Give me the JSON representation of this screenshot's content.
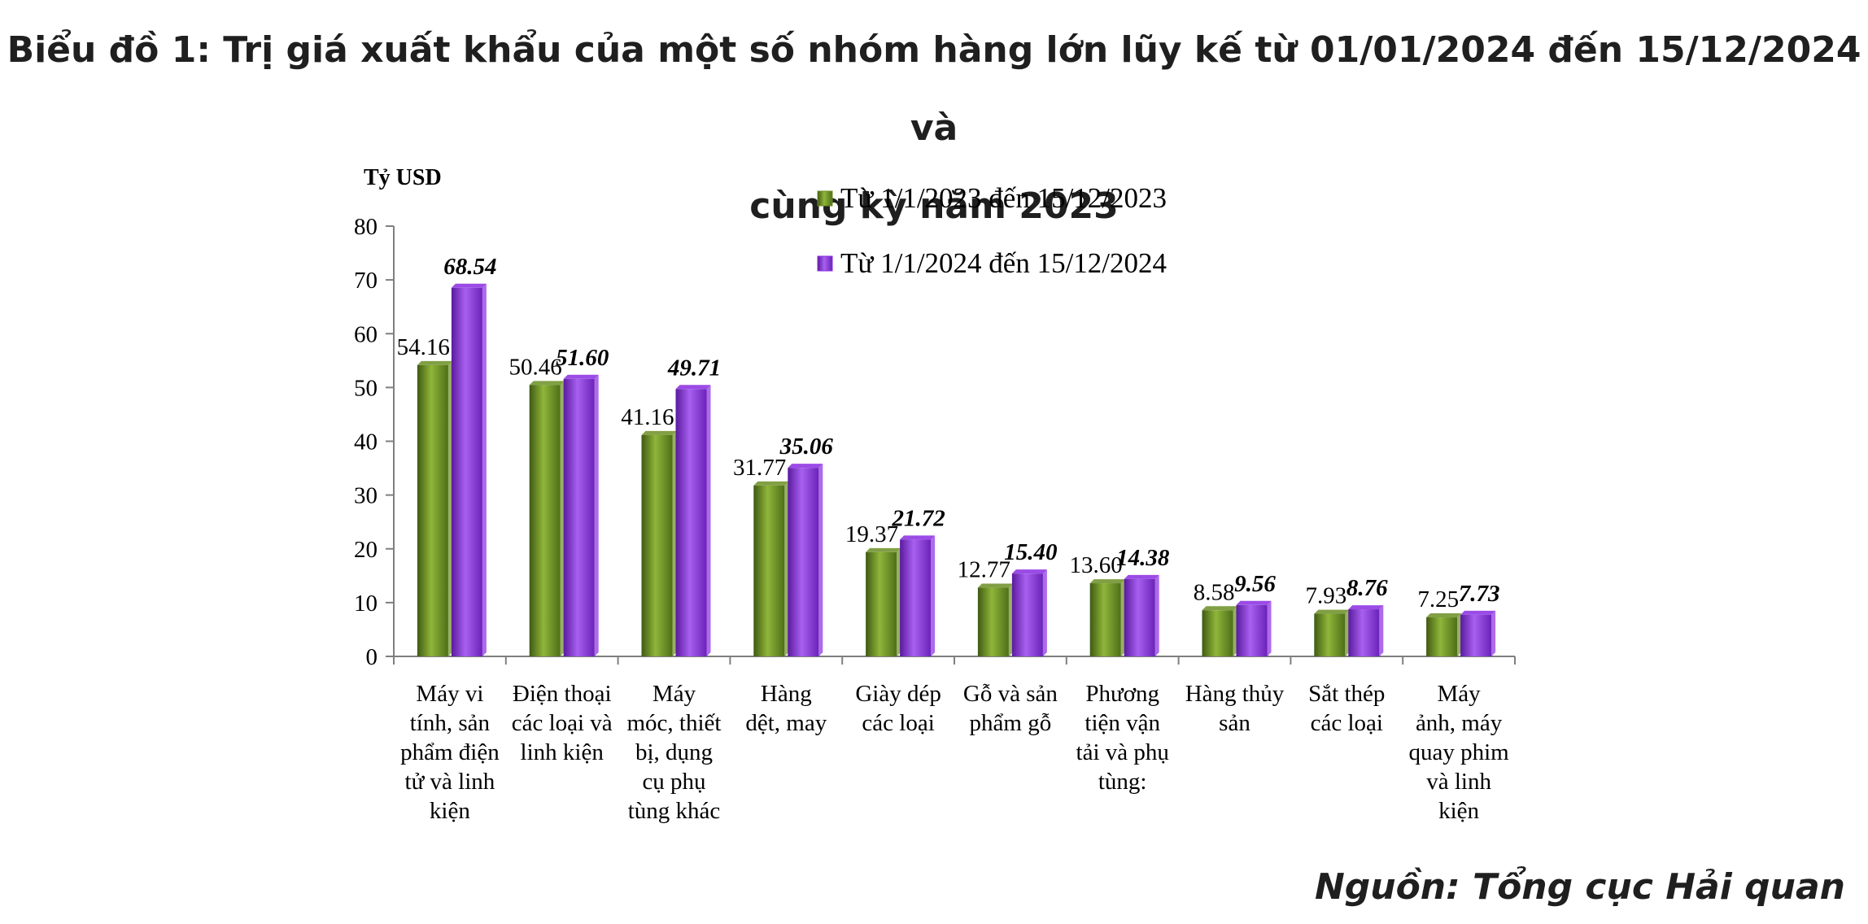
{
  "page": {
    "title_line1": "Biểu đồ 1: Trị giá xuất khẩu của một số nhóm hàng lớn lũy kế từ 01/01/2024 đến 15/12/2024 và",
    "title_line2": "cùng kỳ năm 2023",
    "source": "Nguồn: Tổng cục Hải quan"
  },
  "chart_data": {
    "type": "bar",
    "title": "",
    "ylabel": "Tỷ USD",
    "xlabel": "",
    "ylim": [
      0,
      80
    ],
    "yticks": [
      0,
      10,
      20,
      30,
      40,
      50,
      60,
      70,
      80
    ],
    "grid": false,
    "legend_position": "top-center",
    "categories": [
      [
        "Máy vi",
        "tính, sản",
        "phẩm điện",
        "tử và linh",
        "kiện"
      ],
      [
        "Điện thoại",
        "các loại và",
        "linh kiện"
      ],
      [
        "Máy",
        "móc, thiết",
        "bị, dụng",
        "cụ phụ",
        "tùng khác"
      ],
      [
        "Hàng",
        "dệt, may"
      ],
      [
        "Giày dép",
        "các loại"
      ],
      [
        "Gỗ và sản",
        "phẩm gỗ"
      ],
      [
        "Phương",
        "tiện vận",
        "tải và phụ",
        "tùng:"
      ],
      [
        "Hàng thủy",
        "sản"
      ],
      [
        "Sắt thép",
        "các loại"
      ],
      [
        "Máy",
        "ảnh, máy",
        "quay phim",
        "và linh",
        "kiện"
      ]
    ],
    "series": [
      {
        "name": "Từ 1/1/2023 đến 15/12/2023",
        "color": "#6b8e23",
        "label_style": "normal",
        "values": [
          54.16,
          50.46,
          41.16,
          31.77,
          19.37,
          12.77,
          13.6,
          8.58,
          7.93,
          7.25
        ],
        "labels": [
          "54.16",
          "50.46",
          "41.16",
          "31.77",
          "19.37",
          "12.77",
          "13.60",
          "8.58",
          "7.93",
          "7.25"
        ]
      },
      {
        "name": "Từ 1/1/2024 đến 15/12/2024",
        "color": "#8a2be2",
        "label_style": "bold-italic",
        "values": [
          68.54,
          51.6,
          49.71,
          35.06,
          21.72,
          15.4,
          14.38,
          9.56,
          8.76,
          7.73
        ],
        "labels": [
          "68.54",
          "51.60",
          "49.71",
          "35.06",
          "21.72",
          "15.40",
          "14.38",
          "9.56",
          "8.76",
          "7.73"
        ]
      }
    ]
  }
}
